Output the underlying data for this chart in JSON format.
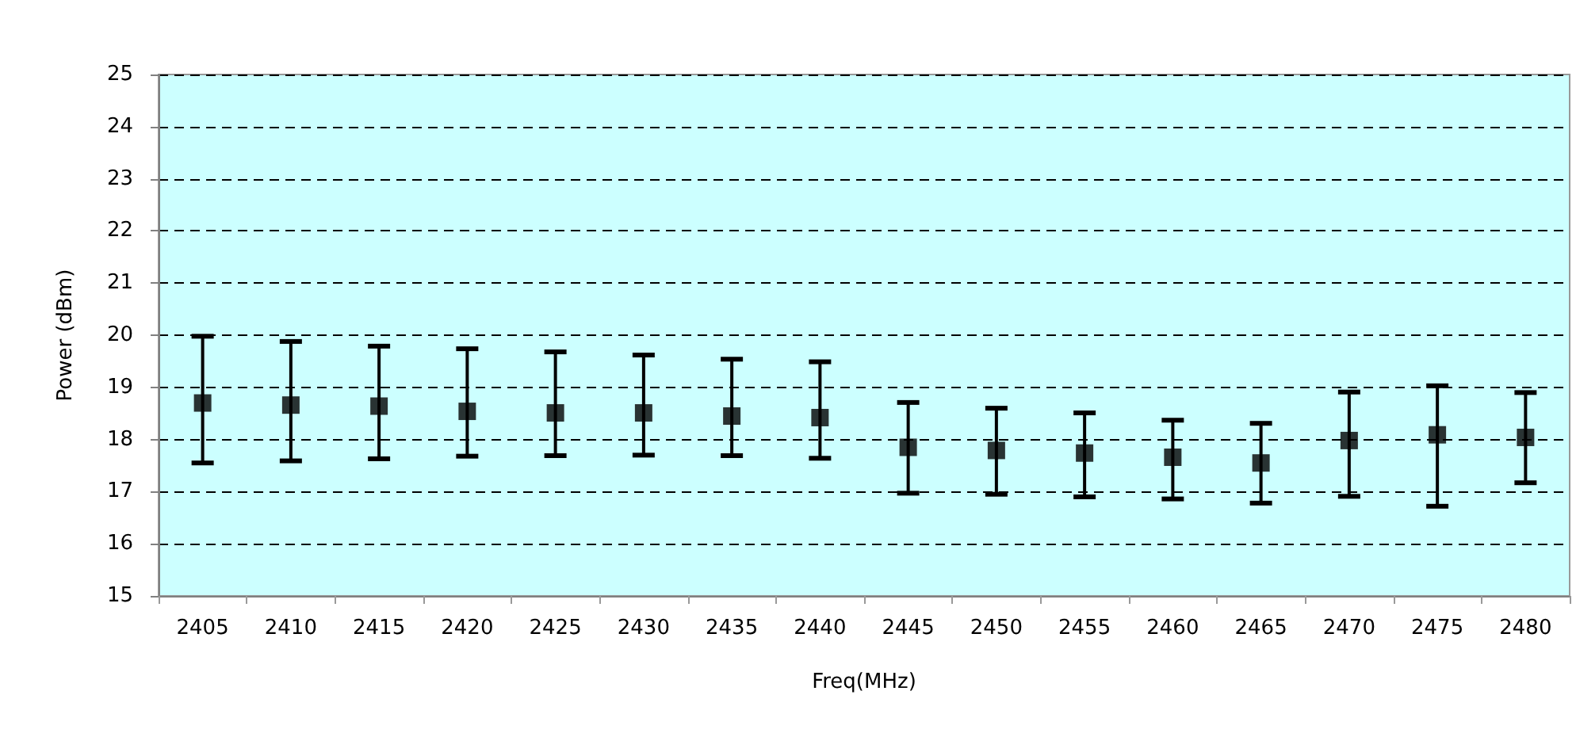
{
  "chart_data": {
    "type": "scatter",
    "xlabel": "Freq(MHz)",
    "ylabel": "Power (dBm)",
    "categories": [
      "2405",
      "2410",
      "2415",
      "2420",
      "2425",
      "2430",
      "2435",
      "2440",
      "2445",
      "2450",
      "2455",
      "2460",
      "2465",
      "2470",
      "2475",
      "2480"
    ],
    "values": [
      18.7,
      18.66,
      18.64,
      18.54,
      18.51,
      18.51,
      18.45,
      18.42,
      17.85,
      17.79,
      17.74,
      17.66,
      17.55,
      17.98,
      18.09,
      18.04
    ],
    "errors": [
      [
        17.55,
        19.98
      ],
      [
        17.59,
        19.88
      ],
      [
        17.63,
        19.79
      ],
      [
        17.68,
        19.74
      ],
      [
        17.69,
        19.68
      ],
      [
        17.7,
        19.62
      ],
      [
        17.69,
        19.54
      ],
      [
        17.64,
        19.49
      ],
      [
        16.97,
        18.71
      ],
      [
        16.95,
        18.6
      ],
      [
        16.9,
        18.51
      ],
      [
        16.86,
        18.37
      ],
      [
        16.78,
        18.31
      ],
      [
        16.91,
        18.91
      ],
      [
        16.72,
        19.03
      ],
      [
        17.17,
        18.9
      ]
    ],
    "color": "#000000",
    "marker": "square",
    "ylim": [
      15,
      25
    ],
    "yticks": [
      15,
      16,
      17,
      18,
      19,
      20,
      21,
      22,
      23,
      24,
      25
    ],
    "grid": "y"
  }
}
